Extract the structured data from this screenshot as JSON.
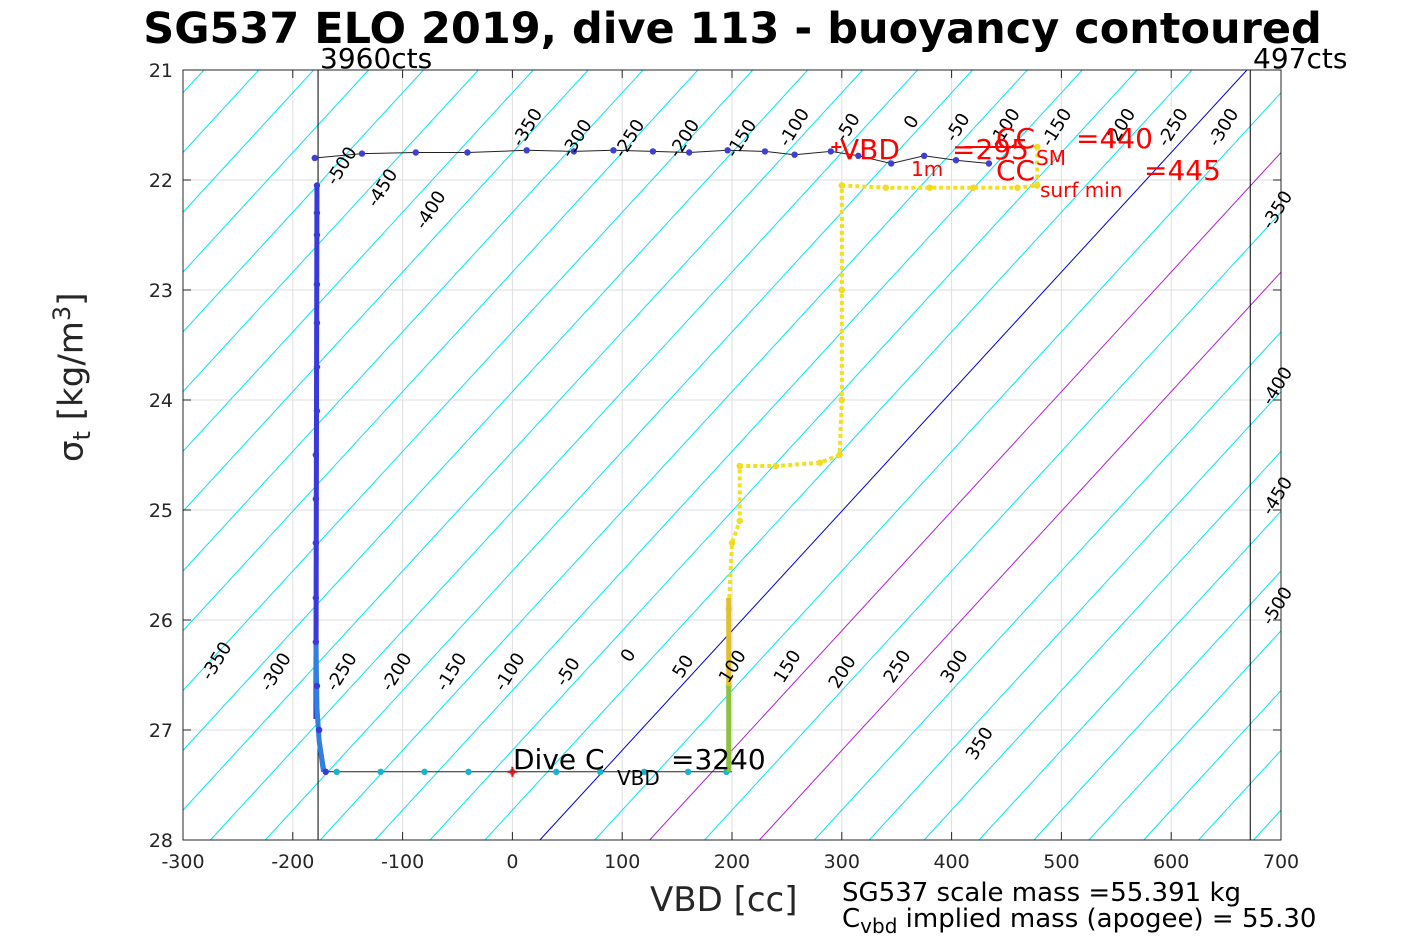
{
  "title": "SG537 ELO 2019, dive 113 - buoyancy contoured",
  "xlabel": "VBD [cc]",
  "ylabel_main": "σ",
  "ylabel_sub": "t",
  "ylabel_units_pre": "[kg/m",
  "ylabel_units_sup": "3",
  "ylabel_units_post": "]",
  "counts_left": "3960cts",
  "counts_right": "497cts",
  "footer_mass": "SG537 scale mass =55.391 kg",
  "footer_cvbd_c": "C",
  "footer_cvbd_sub": "vbd",
  "footer_cvbd_rest": " implied mass (apogee) = 55.30",
  "annotations": {
    "vbd1m": "VBD",
    "vbd1m_sub": "1m",
    "vbd1m_val": "=295",
    "cc_sm": "CC",
    "cc_sm_sub": "SM",
    "cc_sm_val": "=440",
    "cc_surf": "CC",
    "cc_surf_sub": "surf min",
    "cc_surf_val": "=445",
    "dive_c": "Dive C",
    "dive_c_sub": "VBD",
    "dive_c_val": "=3240"
  },
  "chart_data": {
    "type": "scatter",
    "xlim": [
      -300,
      700
    ],
    "ylim": [
      21,
      28
    ],
    "y_reversed": true,
    "grid": true,
    "x_ticks": [
      -300,
      -200,
      -100,
      0,
      100,
      200,
      300,
      400,
      500,
      600,
      700
    ],
    "y_ticks": [
      21,
      22,
      23,
      24,
      25,
      26,
      27,
      28
    ],
    "x_tick_labels": [
      "-300",
      "-200",
      "-100",
      "0",
      "100",
      "200",
      "300",
      "400",
      "500",
      "600",
      "700"
    ],
    "y_tick_labels": [
      "21",
      "22",
      "23",
      "24",
      "25",
      "26",
      "27",
      "28"
    ],
    "count_lines_x": [
      -177,
      672
    ],
    "contour_values_top": [
      "-500",
      "-450",
      "-400",
      "-350",
      "-300",
      "-250",
      "-200",
      "-150",
      "-100",
      "-50",
      "0",
      "-50",
      "-100",
      "-150",
      "-200",
      "-250",
      "-300",
      "-350",
      "-400",
      "-450",
      "-500"
    ],
    "contour_values_bottom": [
      "-350",
      "-300",
      "-250",
      "-200",
      "-150",
      "-100",
      "-50",
      "0",
      "50",
      "100",
      "150",
      "200",
      "250",
      "300",
      "350"
    ],
    "contour_values_right": [
      "300",
      "350",
      "400",
      "450",
      "500"
    ],
    "contour_labels": [
      {
        "x": -151,
        "y": 21.9,
        "text": "-500"
      },
      {
        "x": -114,
        "y": 22.1,
        "text": "-450"
      },
      {
        "x": -70,
        "y": 22.3,
        "text": "-400"
      },
      {
        "x": 18,
        "y": 21.55,
        "text": "-350"
      },
      {
        "x": 63,
        "y": 21.65,
        "text": "-300"
      },
      {
        "x": 111,
        "y": 21.65,
        "text": "-250"
      },
      {
        "x": 161,
        "y": 21.65,
        "text": "-200"
      },
      {
        "x": 213,
        "y": 21.65,
        "text": "-150"
      },
      {
        "x": 261,
        "y": 21.55,
        "text": "-100"
      },
      {
        "x": 310,
        "y": 21.55,
        "text": "-50"
      },
      {
        "x": 368,
        "y": 21.5,
        "text": "0"
      },
      {
        "x": 410,
        "y": 21.55,
        "text": "-50"
      },
      {
        "x": 453,
        "y": 21.55,
        "text": "-100"
      },
      {
        "x": 500,
        "y": 21.55,
        "text": "-150"
      },
      {
        "x": 558,
        "y": 21.55,
        "text": "-200"
      },
      {
        "x": 606,
        "y": 21.55,
        "text": "-250"
      },
      {
        "x": 652,
        "y": 21.55,
        "text": "-300"
      },
      {
        "x": 701,
        "y": 22.3,
        "text": "-350"
      },
      {
        "x": 701,
        "y": 23.9,
        "text": "-400"
      },
      {
        "x": 701,
        "y": 24.9,
        "text": "-450"
      },
      {
        "x": 701,
        "y": 25.9,
        "text": "-500"
      },
      {
        "x": -265,
        "y": 26.4,
        "text": "-350"
      },
      {
        "x": -211,
        "y": 26.5,
        "text": "-300"
      },
      {
        "x": -151,
        "y": 26.5,
        "text": "-250"
      },
      {
        "x": -101,
        "y": 26.5,
        "text": "-200"
      },
      {
        "x": -51,
        "y": 26.5,
        "text": "-150"
      },
      {
        "x": 2,
        "y": 26.5,
        "text": "-100"
      },
      {
        "x": 55,
        "y": 26.5,
        "text": "-50"
      },
      {
        "x": 110,
        "y": 26.35,
        "text": "0"
      },
      {
        "x": 160,
        "y": 26.45,
        "text": "50"
      },
      {
        "x": 205,
        "y": 26.45,
        "text": "100"
      },
      {
        "x": 255,
        "y": 26.45,
        "text": "150"
      },
      {
        "x": 305,
        "y": 26.5,
        "text": "200"
      },
      {
        "x": 355,
        "y": 26.45,
        "text": "250"
      },
      {
        "x": 407,
        "y": 26.45,
        "text": "300"
      },
      {
        "x": 430,
        "y": 27.15,
        "text": "350"
      }
    ],
    "contour_slope_x_per_sigma": 92,
    "cyan_contours_x_at_sigma28": [
      -275,
      -225,
      -175,
      -125,
      -75,
      -25,
      75,
      125,
      175,
      275,
      325,
      375,
      425,
      475,
      525,
      575,
      625,
      675
    ],
    "blue_zero_contour_x_at_sigma28": 25,
    "magenta_contours_x_at_sigma28": [
      125,
      225
    ],
    "series": [
      {
        "name": "ascent",
        "color": "#4040d0",
        "points": [
          [
            -180,
            21.8
          ],
          [
            -137,
            21.76
          ],
          [
            -88,
            21.75
          ],
          [
            -41,
            21.75
          ],
          [
            13,
            21.73
          ],
          [
            56,
            21.74
          ],
          [
            92,
            21.73
          ],
          [
            128,
            21.74
          ],
          [
            161,
            21.75
          ],
          [
            196,
            21.73
          ],
          [
            230,
            21.74
          ],
          [
            257,
            21.77
          ],
          [
            290,
            21.74
          ],
          [
            315,
            21.78
          ],
          [
            345,
            21.85
          ],
          [
            375,
            21.78
          ],
          [
            404,
            21.82
          ],
          [
            434,
            21.85
          ]
        ]
      },
      {
        "name": "descent_deep",
        "color": "#3a3ad8",
        "points": [
          [
            -178,
            22.05
          ],
          [
            -178,
            22.3
          ],
          [
            -178,
            22.5
          ],
          [
            -178,
            22.95
          ],
          [
            -178,
            23.3
          ],
          [
            -178,
            23.7
          ],
          [
            -178,
            24.1
          ],
          [
            -179,
            24.5
          ],
          [
            -179,
            24.9
          ],
          [
            -179,
            25.3
          ],
          [
            -179,
            25.8
          ],
          [
            -179,
            26.2
          ],
          [
            -178,
            26.6
          ],
          [
            -176,
            27.0
          ],
          [
            -170,
            27.38
          ]
        ]
      },
      {
        "name": "bottom",
        "color": "#18b4cc",
        "points": [
          [
            -160,
            27.38
          ],
          [
            -120,
            27.38
          ],
          [
            -80,
            27.38
          ],
          [
            -40,
            27.38
          ],
          [
            0,
            27.38
          ],
          [
            40,
            27.38
          ],
          [
            80,
            27.38
          ],
          [
            120,
            27.38
          ],
          [
            160,
            27.38
          ],
          [
            195,
            27.38
          ]
        ]
      },
      {
        "name": "vbd_ascent",
        "color": "#f0d820",
        "points": [
          [
            197,
            27.2
          ],
          [
            197,
            26.6
          ],
          [
            197,
            25.9
          ],
          [
            200,
            25.3
          ],
          [
            207,
            25.1
          ],
          [
            207,
            24.6
          ],
          [
            240,
            24.6
          ],
          [
            280,
            24.57
          ],
          [
            298,
            24.5
          ],
          [
            300,
            24.0
          ],
          [
            300,
            23.0
          ],
          [
            300,
            22.05
          ],
          [
            340,
            22.07
          ],
          [
            380,
            22.07
          ],
          [
            420,
            22.07
          ],
          [
            460,
            22.07
          ],
          [
            478,
            22.05
          ],
          [
            478,
            21.7
          ]
        ]
      }
    ],
    "markers": [
      {
        "name": "VBD 1m",
        "x": 295,
        "y": 21.7,
        "color": "#ff0000"
      },
      {
        "name": "Dive C VBD",
        "x": 0,
        "y": 27.38,
        "color": "#ff0000"
      }
    ]
  }
}
